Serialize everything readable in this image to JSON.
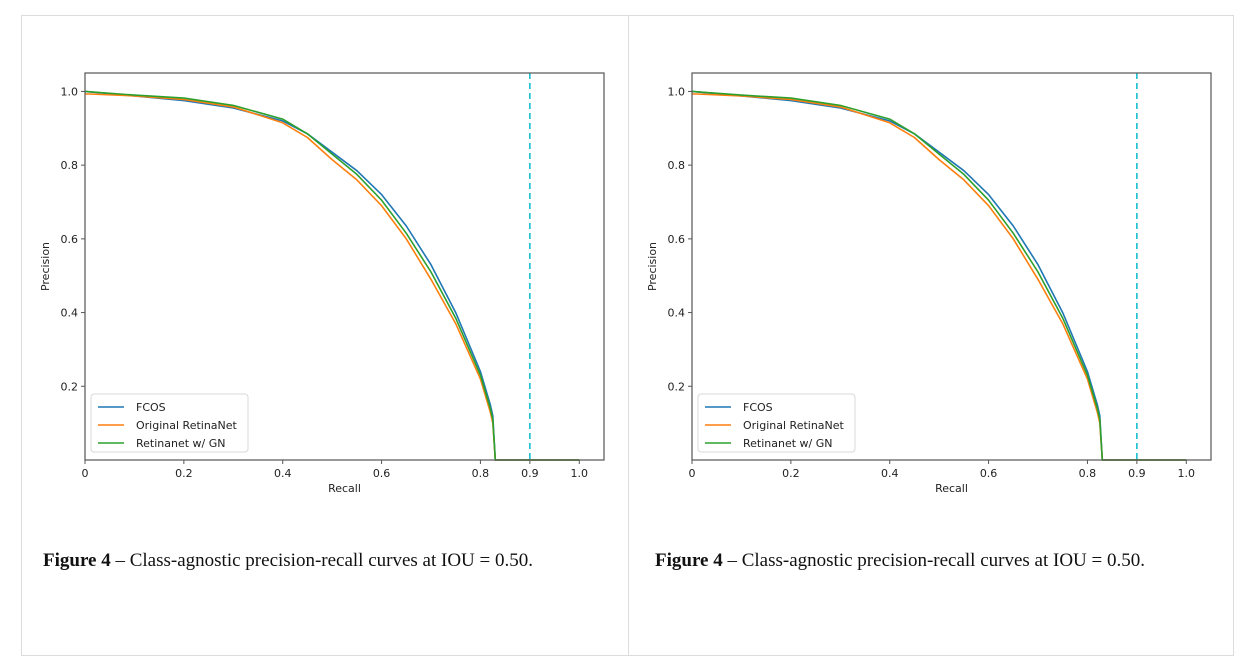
{
  "figures": [
    {
      "caption": {
        "label": "Figure 4",
        "text": "– Class-agnostic precision-recall curves at IOU = 0.50."
      }
    },
    {
      "caption": {
        "label": "Figure 4",
        "text": "– Class-agnostic precision-recall curves at IOU = 0.50."
      }
    }
  ],
  "chart_data": [
    {
      "type": "line",
      "title": "",
      "xlabel": "Recall",
      "ylabel": "Precision",
      "xlim": [
        0,
        1.05
      ],
      "ylim": [
        0,
        1.05
      ],
      "xticks": [
        0,
        0.2,
        0.4,
        0.6,
        0.8,
        0.9,
        1.0
      ],
      "xtick_labels": [
        "0",
        "0.2",
        "0.4",
        "0.6",
        "0.8",
        "0.9",
        "1.0"
      ],
      "yticks": [
        0.2,
        0.4,
        0.6,
        0.8,
        1.0
      ],
      "ytick_labels": [
        "0.2",
        "0.4",
        "0.6",
        "0.8",
        "1.0"
      ],
      "grid": false,
      "legend_position": "bottom-left",
      "reference_line": {
        "x": 0.9,
        "style": "dashed",
        "color": "#17becf"
      },
      "series": [
        {
          "name": "FCOS",
          "color": "#1f77b4",
          "x": [
            0,
            0.1,
            0.2,
            0.3,
            0.4,
            0.45,
            0.5,
            0.55,
            0.6,
            0.65,
            0.7,
            0.75,
            0.8,
            0.82,
            0.825,
            0.83,
            1.0
          ],
          "y": [
            1.0,
            0.988,
            0.975,
            0.955,
            0.92,
            0.885,
            0.835,
            0.785,
            0.72,
            0.635,
            0.53,
            0.4,
            0.24,
            0.15,
            0.12,
            0,
            0
          ]
        },
        {
          "name": "Original RetinaNet",
          "color": "#ff7f0e",
          "x": [
            0,
            0.01,
            0.1,
            0.2,
            0.3,
            0.4,
            0.45,
            0.5,
            0.55,
            0.6,
            0.65,
            0.7,
            0.75,
            0.8,
            0.82,
            0.825,
            0.83,
            1.0
          ],
          "y": [
            0.993,
            0.993,
            0.988,
            0.978,
            0.958,
            0.915,
            0.875,
            0.815,
            0.76,
            0.69,
            0.6,
            0.49,
            0.37,
            0.22,
            0.13,
            0.1,
            0,
            0
          ]
        },
        {
          "name": "Retinanet w/ GN",
          "color": "#2ca02c",
          "x": [
            0,
            0.1,
            0.2,
            0.3,
            0.4,
            0.45,
            0.5,
            0.55,
            0.6,
            0.65,
            0.7,
            0.75,
            0.8,
            0.82,
            0.825,
            0.83,
            1.0
          ],
          "y": [
            1.0,
            0.99,
            0.982,
            0.962,
            0.925,
            0.885,
            0.83,
            0.775,
            0.705,
            0.615,
            0.51,
            0.385,
            0.23,
            0.14,
            0.11,
            0,
            0
          ]
        }
      ]
    },
    {
      "type": "line",
      "title": "",
      "xlabel": "Recall",
      "ylabel": "Precision",
      "xlim": [
        0,
        1.05
      ],
      "ylim": [
        0,
        1.05
      ],
      "xticks": [
        0,
        0.2,
        0.4,
        0.6,
        0.8,
        0.9,
        1.0
      ],
      "xtick_labels": [
        "0",
        "0.2",
        "0.4",
        "0.6",
        "0.8",
        "0.9",
        "1.0"
      ],
      "yticks": [
        0.2,
        0.4,
        0.6,
        0.8,
        1.0
      ],
      "ytick_labels": [
        "0.2",
        "0.4",
        "0.6",
        "0.8",
        "1.0"
      ],
      "grid": false,
      "legend_position": "bottom-left",
      "reference_line": {
        "x": 0.9,
        "style": "dashed",
        "color": "#17becf"
      },
      "series": [
        {
          "name": "FCOS",
          "color": "#1f77b4",
          "x": [
            0,
            0.1,
            0.2,
            0.3,
            0.4,
            0.45,
            0.5,
            0.55,
            0.6,
            0.65,
            0.7,
            0.75,
            0.8,
            0.82,
            0.825,
            0.83,
            1.0
          ],
          "y": [
            1.0,
            0.988,
            0.975,
            0.955,
            0.92,
            0.885,
            0.835,
            0.785,
            0.72,
            0.635,
            0.53,
            0.4,
            0.24,
            0.15,
            0.12,
            0,
            0
          ]
        },
        {
          "name": "Original RetinaNet",
          "color": "#ff7f0e",
          "x": [
            0,
            0.01,
            0.1,
            0.2,
            0.3,
            0.4,
            0.45,
            0.5,
            0.55,
            0.6,
            0.65,
            0.7,
            0.75,
            0.8,
            0.82,
            0.825,
            0.83,
            1.0
          ],
          "y": [
            0.993,
            0.993,
            0.988,
            0.978,
            0.958,
            0.915,
            0.875,
            0.815,
            0.76,
            0.69,
            0.6,
            0.49,
            0.37,
            0.22,
            0.13,
            0.1,
            0,
            0
          ]
        },
        {
          "name": "Retinanet w/ GN",
          "color": "#2ca02c",
          "x": [
            0,
            0.1,
            0.2,
            0.3,
            0.4,
            0.45,
            0.5,
            0.55,
            0.6,
            0.65,
            0.7,
            0.75,
            0.8,
            0.82,
            0.825,
            0.83,
            1.0
          ],
          "y": [
            1.0,
            0.99,
            0.982,
            0.962,
            0.925,
            0.885,
            0.83,
            0.775,
            0.705,
            0.615,
            0.51,
            0.385,
            0.23,
            0.14,
            0.11,
            0,
            0
          ]
        }
      ]
    }
  ]
}
